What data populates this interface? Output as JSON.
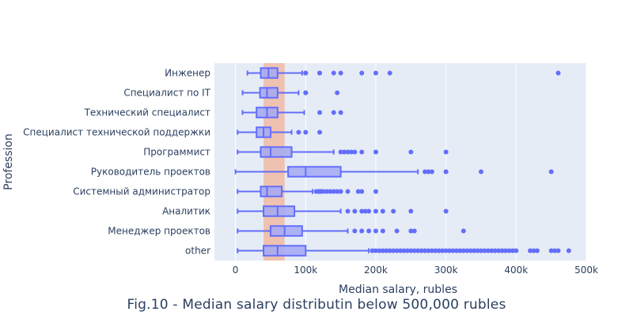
{
  "chart_data": {
    "type": "box",
    "orientation": "horizontal",
    "caption": "Fig.10 - Median salary distributin below 500,000 rubles",
    "xlabel": "Median salary, rubles",
    "ylabel": "Profession",
    "xlim": [
      -30000,
      500000
    ],
    "xticks": [
      0,
      100000,
      200000,
      300000,
      400000,
      500000
    ],
    "xtick_labels": [
      "0",
      "100k",
      "200k",
      "300k",
      "400k",
      "500k"
    ],
    "grid": true,
    "colors": {
      "plot_bg": "#e5ecf6",
      "box_line": "#636efa",
      "box_fill": "#a3a8f5",
      "band": "#f4a582"
    },
    "band": {
      "x0": 40000,
      "x1": 70000
    },
    "categories": [
      "Инженер",
      "Специалист по IT",
      "Технический специалист",
      "Специалист технической поддержки",
      "Программист",
      "Руководитель проектов",
      "Системный администратор",
      "Аналитик",
      "Менеджер проектов",
      "other"
    ],
    "boxes": [
      {
        "category": "Инженер",
        "lower_whisker": 17000,
        "q1": 36000,
        "median": 47000,
        "q3": 60000,
        "upper_whisker": 95000,
        "outliers": [
          100000,
          100000,
          120000,
          120000,
          140000,
          150000,
          180000,
          200000,
          220000,
          460000
        ]
      },
      {
        "category": "Специалист по IT",
        "lower_whisker": 10000,
        "q1": 35000,
        "median": 45000,
        "q3": 60000,
        "upper_whisker": 90000,
        "outliers": [
          100000,
          100000,
          145000
        ]
      },
      {
        "category": "Технический специалист",
        "lower_whisker": 10000,
        "q1": 30000,
        "median": 45000,
        "q3": 60000,
        "upper_whisker": 98000,
        "outliers": [
          120000,
          140000,
          150000
        ]
      },
      {
        "category": "Специалист технической поддержки",
        "lower_whisker": 3000,
        "q1": 30000,
        "median": 40000,
        "q3": 50000,
        "upper_whisker": 80000,
        "outliers": [
          90000,
          100000,
          120000
        ]
      },
      {
        "category": "Программист",
        "lower_whisker": 3000,
        "q1": 36000,
        "median": 50000,
        "q3": 80000,
        "upper_whisker": 140000,
        "outliers": [
          150000,
          155000,
          160000,
          165000,
          170000,
          180000,
          200000,
          200000,
          250000,
          300000
        ]
      },
      {
        "category": "Руководитель проектов",
        "lower_whisker": 0,
        "q1": 75000,
        "median": 100000,
        "q3": 150000,
        "upper_whisker": 260000,
        "outliers": [
          270000,
          275000,
          280000,
          300000,
          300000,
          350000,
          450000
        ]
      },
      {
        "category": "Системный администратор",
        "lower_whisker": 3000,
        "q1": 36000,
        "median": 45000,
        "q3": 66000,
        "upper_whisker": 110000,
        "outliers": [
          115000,
          118000,
          120000,
          122000,
          125000,
          130000,
          135000,
          140000,
          145000,
          150000,
          160000,
          175000,
          180000,
          200000
        ]
      },
      {
        "category": "Аналитик",
        "lower_whisker": 3000,
        "q1": 40000,
        "median": 60000,
        "q3": 84000,
        "upper_whisker": 150000,
        "outliers": [
          160000,
          170000,
          180000,
          185000,
          190000,
          200000,
          210000,
          225000,
          250000,
          300000
        ]
      },
      {
        "category": "Менеджер проектов",
        "lower_whisker": 3000,
        "q1": 50000,
        "median": 70000,
        "q3": 95000,
        "upper_whisker": 160000,
        "outliers": [
          170000,
          180000,
          190000,
          200000,
          210000,
          230000,
          250000,
          255000,
          325000
        ]
      },
      {
        "category": "other",
        "lower_whisker": 3000,
        "q1": 40000,
        "median": 60000,
        "q3": 100000,
        "upper_whisker": 190000,
        "outliers": [
          195000,
          200000,
          205000,
          210000,
          215000,
          220000,
          225000,
          230000,
          235000,
          240000,
          245000,
          250000,
          255000,
          260000,
          265000,
          270000,
          275000,
          280000,
          285000,
          290000,
          295000,
          300000,
          305000,
          310000,
          315000,
          320000,
          325000,
          330000,
          335000,
          340000,
          345000,
          350000,
          355000,
          360000,
          365000,
          370000,
          375000,
          380000,
          385000,
          390000,
          395000,
          400000,
          420000,
          425000,
          430000,
          450000,
          455000,
          460000,
          475000
        ]
      }
    ]
  }
}
